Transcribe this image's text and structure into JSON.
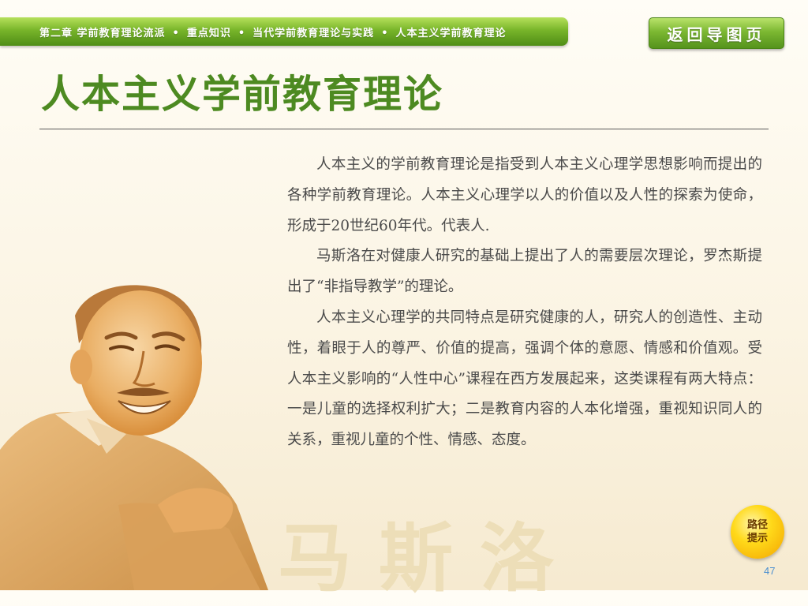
{
  "breadcrumb": {
    "items": [
      "第二章 学前教育理论流派",
      "重点知识",
      "当代学前教育理论与实践",
      "人本主义学前教育理论"
    ],
    "separator": "•"
  },
  "back_button": {
    "label": "返回导图页"
  },
  "page": {
    "title": "人本主义学前教育理论",
    "paragraphs": [
      "人本主义的学前教育理论是指受到人本主义心理学思想影响而提出的各种学前教育理论。人本主义心理学以人的价值以及人性的探索为使命，形成于20世纪60年代。代表人.",
      "马斯洛在对健康人研究的基础上提出了人的需要层次理论，罗杰斯提出了“非指导教学”的理论。",
      "人本主义心理学的共同特点是研究健康的人，研究人的创造性、主动性，着眼于人的尊严、价值的提高，强调个体的意愿、情感和价值观。受人本主义影响的“人性中心”课程在西方发展起来，这类课程有两大特点：一是儿童的选择权利扩大；二是教育内容的人本化增强，重视知识同人的关系，重视儿童的个性、情感、态度。"
    ],
    "watermark_name": "马斯洛",
    "photo_icon": "portrait-photo-icon"
  },
  "hint_button": {
    "label": "路径提示"
  },
  "page_number": "47",
  "colors": {
    "accent_green": "#4d8a21",
    "bar_green": "#78b52a",
    "hint_yellow": "#ffd91a",
    "page_number_blue": "#4b8fd0",
    "watermark": "#ecdcb4"
  }
}
